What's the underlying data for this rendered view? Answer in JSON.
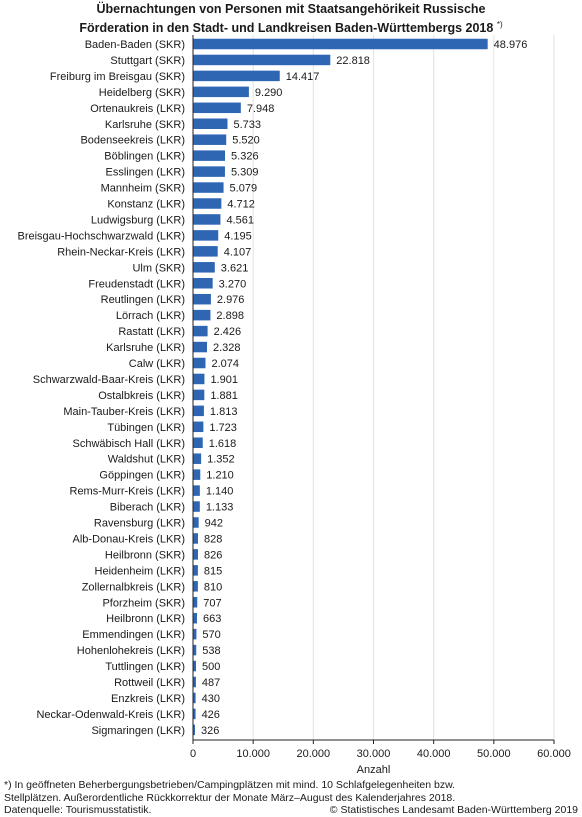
{
  "title_line1": "Übernachtungen von Personen mit Staatsangehörikeit Russische",
  "title_line2": "Förderation in den Stadt- und Landkreisen Baden-Württembergs 2018",
  "title_marker": "*)",
  "footnote_line1": "*) In geöffneten Beherbergungsbetrieben/Campingplätzen mit mind. 10 Schlafgelegenheiten bzw.",
  "footnote_line2": "Stellplätzen. Außerordentliche Rückkorrektur der Monate März–August des Kalenderjahres 2018.",
  "source": "Datenquelle: Tourismusstatistik.",
  "copyright": "© Statistisches Landesamt Baden-Württemberg 2019",
  "colors": {
    "bar": "#2e66b3",
    "grid": "#e2e2e2",
    "axis": "#222222"
  },
  "chart_data": {
    "type": "bar",
    "orientation": "horizontal",
    "categories": [
      "Baden-Baden (SKR)",
      "Stuttgart (SKR)",
      "Freiburg im Breisgau (SKR)",
      "Heidelberg (SKR)",
      "Ortenaukreis (LKR)",
      "Karlsruhe (SKR)",
      "Bodenseekreis (LKR)",
      "Böblingen (LKR)",
      "Esslingen (LKR)",
      "Mannheim (SKR)",
      "Konstanz (LKR)",
      "Ludwigsburg (LKR)",
      "Breisgau-Hochschwarzwald (LKR)",
      "Rhein-Neckar-Kreis (LKR)",
      "Ulm (SKR)",
      "Freudenstadt (LKR)",
      "Reutlingen (LKR)",
      "Lörrach (LKR)",
      "Rastatt (LKR)",
      "Karlsruhe (LKR)",
      "Calw (LKR)",
      "Schwarzwald-Baar-Kreis (LKR)",
      "Ostalbkreis (LKR)",
      "Main-Tauber-Kreis (LKR)",
      "Tübingen (LKR)",
      "Schwäbisch Hall (LKR)",
      "Waldshut (LKR)",
      "Göppingen (LKR)",
      "Rems-Murr-Kreis (LKR)",
      "Biberach (LKR)",
      "Ravensburg (LKR)",
      "Alb-Donau-Kreis (LKR)",
      "Heilbronn (SKR)",
      "Heidenheim (LKR)",
      "Zollernalbkreis (LKR)",
      "Pforzheim (SKR)",
      "Heilbronn (LKR)",
      "Emmendingen (LKR)",
      "Hohenlohekreis (LKR)",
      "Tuttlingen (LKR)",
      "Rottweil (LKR)",
      "Enzkreis (LKR)",
      "Neckar-Odenwald-Kreis (LKR)",
      "Sigmaringen (LKR)"
    ],
    "values": [
      48976,
      22818,
      14417,
      9290,
      7948,
      5733,
      5520,
      5326,
      5309,
      5079,
      4712,
      4561,
      4195,
      4107,
      3621,
      3270,
      2976,
      2898,
      2426,
      2328,
      2074,
      1901,
      1881,
      1813,
      1723,
      1618,
      1352,
      1210,
      1140,
      1133,
      942,
      828,
      826,
      815,
      810,
      707,
      663,
      570,
      538,
      500,
      487,
      430,
      426,
      326
    ],
    "value_labels": [
      "48.976",
      "22.818",
      "14.417",
      "9.290",
      "7.948",
      "5.733",
      "5.520",
      "5.326",
      "5.309",
      "5.079",
      "4.712",
      "4.561",
      "4.195",
      "4.107",
      "3.621",
      "3.270",
      "2.976",
      "2.898",
      "2.426",
      "2.328",
      "2.074",
      "1.901",
      "1.881",
      "1.813",
      "1.723",
      "1.618",
      "1.352",
      "1.210",
      "1.140",
      "1.133",
      "942",
      "828",
      "826",
      "815",
      "810",
      "707",
      "663",
      "570",
      "538",
      "500",
      "487",
      "430",
      "426",
      "326"
    ],
    "xticks": [
      0,
      10000,
      20000,
      30000,
      40000,
      50000,
      60000
    ],
    "xtick_labels": [
      "0",
      "10.000",
      "20.000",
      "30.000",
      "40.000",
      "50.000",
      "60.000"
    ],
    "xlim": [
      0,
      60000
    ],
    "xlabel": "Anzahl",
    "grid": true
  }
}
